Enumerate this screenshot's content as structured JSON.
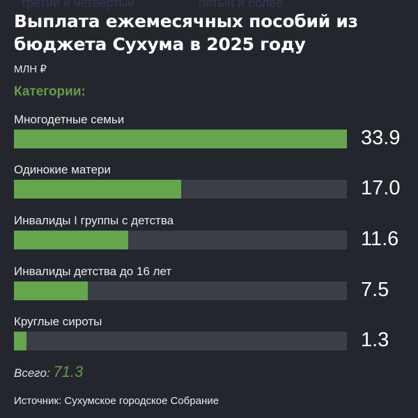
{
  "ghost_text": [
    "третий и четвертый",
    "пятый и более"
  ],
  "title": "Выплата ежемесячных пособий из бюджета Сухума в 2025 году",
  "unit": "МЛН ₽",
  "categories_label": "Категории:",
  "total_label": "Всего:",
  "total_value": "71.3",
  "source": "Источник: Сухумское городское Собрание",
  "colors": {
    "background": "#24262e",
    "bar": "#63a64d",
    "track": "#3b3e45",
    "accent": "#5e9f4a"
  },
  "rows": [
    {
      "label": "Многодетные семьи",
      "value": "33.9"
    },
    {
      "label": "Одинокие матери",
      "value": "17.0"
    },
    {
      "label": "Инвалиды I группы с детства",
      "value": "11.6"
    },
    {
      "label": "Инвалиды детства до 16 лет",
      "value": "7.5"
    },
    {
      "label": "Круглые сироты",
      "value": "1.3"
    }
  ],
  "chart_data": {
    "type": "bar",
    "orientation": "horizontal",
    "title": "Выплата ежемесячных пособий из бюджета Сухума в 2025 году",
    "subtitle": "МЛН ₽",
    "legend_title": "Категории:",
    "categories": [
      "Многодетные семьи",
      "Одинокие матери",
      "Инвалиды I группы с детства",
      "Инвалиды детства до 16 лет",
      "Круглые сироты"
    ],
    "values": [
      33.9,
      17.0,
      11.6,
      7.5,
      1.3
    ],
    "total": 71.3,
    "xlim": [
      0,
      33.9
    ],
    "grid": false,
    "source": "Источник: Сухумское городское Собрание"
  }
}
